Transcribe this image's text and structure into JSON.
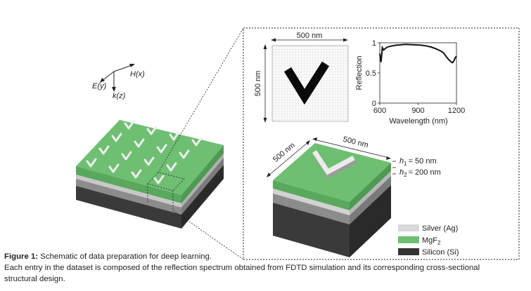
{
  "axes_labels": {
    "e_field": "E(y)",
    "h_field": "H(x)",
    "k_vector": "k(z)"
  },
  "top_view": {
    "width_label": "500 nm",
    "height_label": "500 nm"
  },
  "structure_3d": {
    "dim_a": "500 nm",
    "dim_b": "500 nm",
    "h1_label": "= 50 nm",
    "h2_label": "= 200 nm",
    "h1_symbol": "h",
    "h1_sub": "1",
    "h2_symbol": "h",
    "h2_sub": "2"
  },
  "legend": [
    {
      "label": "Silver (Ag)",
      "color": "#d9d9d9"
    },
    {
      "label": "MgF",
      "sub": "2",
      "color": "#6fbf72"
    },
    {
      "label": "Silicon (Si)",
      "color": "#333333"
    }
  ],
  "colors": {
    "mgf2_top": "#6fbf72",
    "mgf2_side": "#4e9a53",
    "silver": "#c8c8c8",
    "silicon_front": "#3a3a3a",
    "silicon_side": "#2a2a2a",
    "gap_gray": "#8c8c8c"
  },
  "chart_data": {
    "type": "line",
    "title": "",
    "xlabel": "Wavelength (nm)",
    "ylabel": "Reflection",
    "xlim": [
      600,
      1200
    ],
    "ylim": [
      0,
      1
    ],
    "xticks": [
      "600",
      "900",
      "1200"
    ],
    "yticks": [
      "0",
      "0.5",
      "1"
    ],
    "x": [
      600,
      610,
      620,
      630,
      640,
      660,
      680,
      700,
      730,
      760,
      800,
      840,
      880,
      920,
      960,
      1000,
      1040,
      1080,
      1100,
      1120,
      1140,
      1160,
      1170,
      1180,
      1190,
      1200
    ],
    "y": [
      0.82,
      0.68,
      0.92,
      0.88,
      0.9,
      0.93,
      0.94,
      0.95,
      0.96,
      0.965,
      0.975,
      0.97,
      0.965,
      0.96,
      0.95,
      0.93,
      0.9,
      0.86,
      0.83,
      0.77,
      0.72,
      0.68,
      0.67,
      0.7,
      0.75,
      0.78
    ]
  },
  "caption": {
    "label": "Figure 1:",
    "title": " Schematic of data preparation for deep learning.",
    "line2": "Each entry in the dataset is composed of the reflection spectrum obtained from FDTD simulation and its corresponding cross-sectional",
    "line3": "structural design."
  }
}
